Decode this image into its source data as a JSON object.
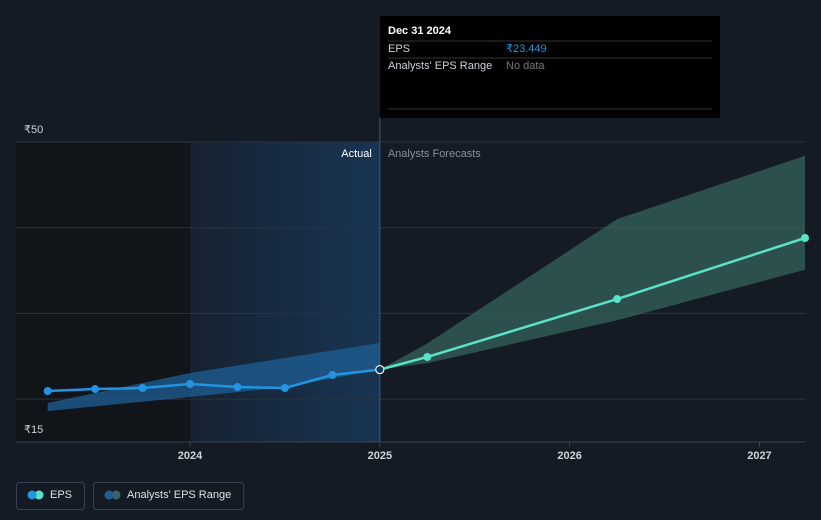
{
  "chart_data": {
    "type": "line",
    "xlim": [
      2023.083,
      2027.24
    ],
    "xticks": [
      2024,
      2025,
      2026,
      2027
    ],
    "ylim": [
      15,
      50
    ],
    "yticks": [
      {
        "value": 15,
        "label": "₹15"
      },
      {
        "value": 50,
        "label": "₹50"
      }
    ],
    "gridlines": [
      20,
      30,
      40,
      50
    ],
    "divider": 2025,
    "actual_label": "Actual",
    "forecast_label": "Analysts Forecasts",
    "series": [
      {
        "name": "EPS",
        "color": "#2394df",
        "forecast_color": "#5ce1c9",
        "past": {
          "x": [
            2023.25,
            2023.5,
            2023.75,
            2024.0,
            2024.25,
            2024.5,
            2024.75,
            2025.0
          ],
          "values": [
            20.95,
            21.18,
            21.3,
            21.77,
            21.42,
            21.3,
            22.82,
            23.449
          ]
        },
        "forecast": {
          "x": [
            2025.0,
            2025.25,
            2026.25,
            2027.24
          ],
          "values": [
            23.449,
            24.92,
            31.68,
            38.8
          ]
        }
      },
      {
        "name": "Analysts' EPS Range",
        "color": "#1f5f96",
        "forecast_color": "#36665f",
        "past": {
          "x": [
            2023.25,
            2024.0,
            2024.5,
            2025.0
          ],
          "low": [
            18.6,
            20.25,
            21.4,
            23.449
          ],
          "high": [
            19.55,
            23.05,
            24.8,
            26.55
          ]
        },
        "forecast": {
          "x": [
            2025.0,
            2025.25,
            2026.25,
            2027.24
          ],
          "low": [
            23.449,
            24.2,
            29.2,
            35.1
          ],
          "high": [
            23.449,
            26.5,
            41.0,
            48.4
          ]
        }
      }
    ],
    "tooltip": {
      "date": "Dec 31 2024",
      "rows": [
        {
          "label": "EPS",
          "value": "₹23.449"
        },
        {
          "label": "Analysts' EPS Range",
          "value": "No data"
        }
      ]
    }
  }
}
